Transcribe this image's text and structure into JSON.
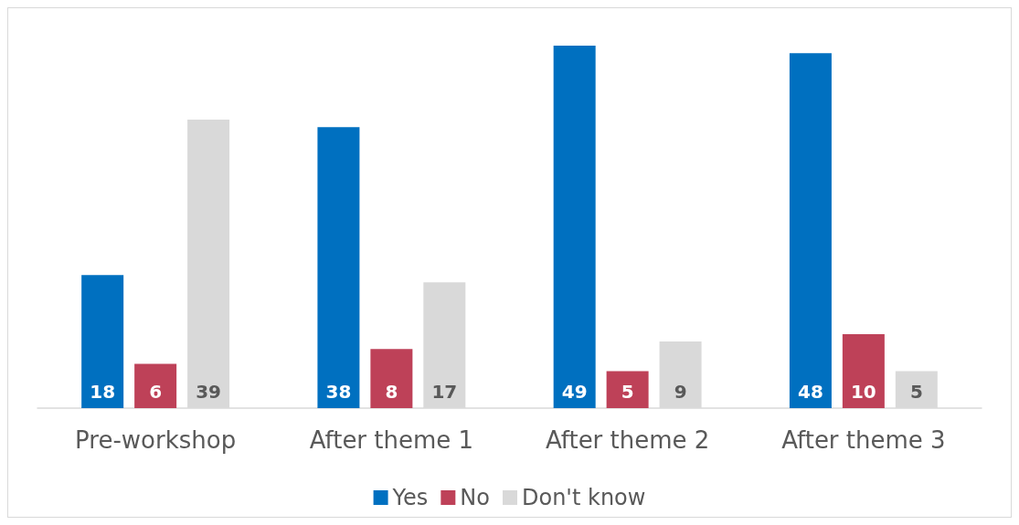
{
  "chart_data": {
    "type": "bar",
    "categories": [
      "Pre-workshop",
      "After theme 1",
      "After theme 2",
      "After theme 3"
    ],
    "series": [
      {
        "name": "Yes",
        "color": "#0070c0",
        "values": [
          18,
          38,
          49,
          48
        ]
      },
      {
        "name": "No",
        "color": "#be4158",
        "values": [
          6,
          8,
          5,
          10
        ]
      },
      {
        "name": "Don't know",
        "color": "#d9d9d9",
        "values": [
          39,
          17,
          9,
          5
        ]
      }
    ],
    "data_labels": true,
    "legend": "bottom",
    "grid": false
  }
}
